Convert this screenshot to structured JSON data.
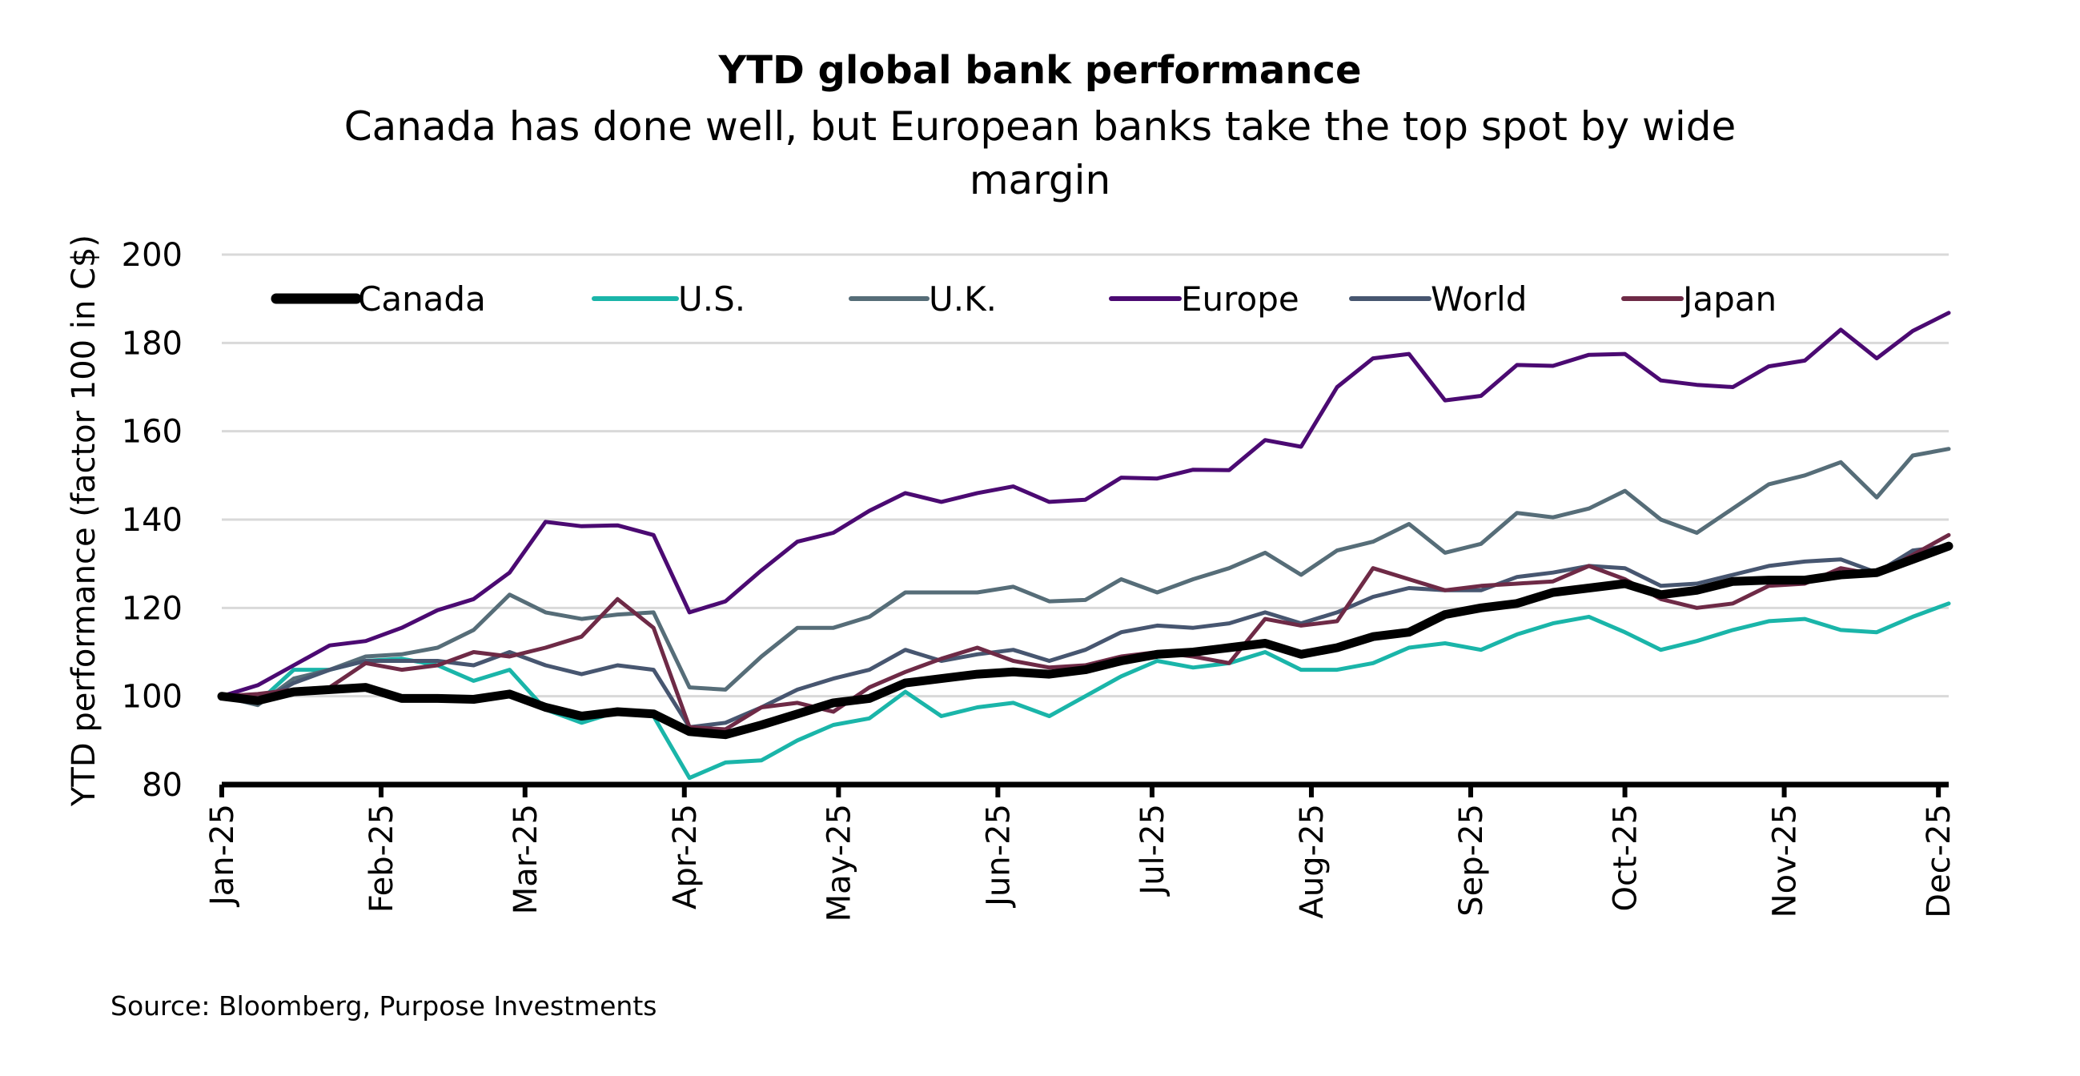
{
  "chart_data": {
    "type": "line",
    "title": "YTD global bank performance",
    "subtitle_lines": [
      "Canada has done well, but European banks take the top spot by wide",
      "margin"
    ],
    "ylabel": "YTD performance (factor 100 in C$)",
    "xlabel": "",
    "ylim": [
      80,
      200
    ],
    "yticks": [
      80,
      100,
      120,
      140,
      160,
      180,
      200
    ],
    "grid": "horizontal",
    "legend_placement": "top-left",
    "x_start": "2025-01-01",
    "x_step_days": 7,
    "xtick_labels": [
      "Jan-25",
      "Feb-25",
      "Mar-25",
      "Apr-25",
      "May-25",
      "Jun-25",
      "Jul-25",
      "Aug-25",
      "Sep-25",
      "Oct-25",
      "Nov-25",
      "Dec-25"
    ],
    "xtick_dates": [
      "2025-01-01",
      "2025-02-01",
      "2025-03-01",
      "2025-04-01",
      "2025-05-01",
      "2025-06-01",
      "2025-07-01",
      "2025-08-01",
      "2025-09-01",
      "2025-10-01",
      "2025-11-01",
      "2025-12-01"
    ],
    "series": [
      {
        "name": "Canada",
        "color": "#000000",
        "values": [
          100,
          99,
          101,
          101.5,
          102,
          99.5,
          99.5,
          99.3,
          100.5,
          97.5,
          95.5,
          96.5,
          96,
          92,
          91.3,
          93.5,
          96,
          98.5,
          99.5,
          103,
          104,
          105,
          105.5,
          105,
          106,
          108,
          109.5,
          110,
          111,
          112,
          109.5,
          111,
          113.5,
          114.5,
          118.5,
          120,
          121,
          123.5,
          124.5,
          125.5,
          123,
          124,
          126,
          126.3,
          126.3,
          127.5,
          128,
          131,
          134
        ]
      },
      {
        "name": "U.S.",
        "color": "#1ab5a9",
        "values": [
          100,
          98.5,
          106,
          106,
          108,
          108.5,
          107,
          103.5,
          106,
          97,
          94,
          96.5,
          95.5,
          81.5,
          85,
          85.5,
          90,
          93.5,
          95,
          101,
          95.5,
          97.5,
          98.5,
          95.5,
          100,
          104.5,
          108,
          106.5,
          107.5,
          110,
          106,
          106,
          107.5,
          111,
          112,
          110.5,
          114,
          116.5,
          118,
          114.5,
          110.5,
          112.5,
          115,
          117,
          117.5,
          115,
          114.5,
          118,
          121
        ]
      },
      {
        "name": "U.K.",
        "color": "#566d78",
        "values": [
          100,
          98,
          104,
          106,
          109,
          109.5,
          111,
          115,
          123,
          119,
          117.5,
          118.5,
          119,
          102,
          101.5,
          109,
          115.5,
          115.5,
          118,
          123.5,
          123.5,
          123.5,
          124.8,
          121.5,
          121.8,
          126.5,
          123.5,
          126.5,
          129,
          132.5,
          127.5,
          133,
          135,
          139,
          132.5,
          134.5,
          141.5,
          140.5,
          142.5,
          146.5,
          140,
          137,
          142.5,
          148,
          150,
          153,
          145,
          154.5,
          156
        ]
      },
      {
        "name": "Europe",
        "color": "#4b0a72",
        "values": [
          100,
          102.5,
          107,
          111.5,
          112.5,
          115.5,
          119.5,
          122,
          128,
          139.5,
          138.5,
          138.7,
          136.5,
          119,
          121.5,
          128.5,
          135,
          137,
          142,
          146,
          144,
          146,
          147.5,
          144,
          144.5,
          149.5,
          149.3,
          151.3,
          151.2,
          158,
          156.5,
          170,
          176.5,
          177.5,
          167,
          168,
          175,
          174.8,
          177.3,
          177.5,
          171.5,
          170.5,
          170,
          174.7,
          176,
          183,
          176.5,
          182.7,
          186.8
        ]
      },
      {
        "name": "World",
        "color": "#475670",
        "values": [
          100,
          98.5,
          103,
          106,
          108,
          108,
          108,
          107,
          110,
          107,
          105,
          107,
          106,
          93,
          94,
          97.5,
          101.5,
          104,
          106,
          110.5,
          108,
          109.5,
          110.5,
          108,
          110.5,
          114.5,
          116,
          115.5,
          116.5,
          119,
          116.5,
          119,
          122.5,
          124.5,
          124,
          124,
          127,
          128,
          129.5,
          129,
          125,
          125.5,
          127.5,
          129.5,
          130.5,
          131,
          128,
          133,
          134
        ]
      },
      {
        "name": "Japan",
        "color": "#6e2a46",
        "values": [
          100,
          100.5,
          101.5,
          102,
          107.5,
          106,
          107,
          110,
          109,
          111,
          113.5,
          122,
          115.5,
          93,
          92.5,
          97.5,
          98.5,
          96.5,
          102,
          105.5,
          108.5,
          111,
          108,
          106.5,
          107,
          109,
          110,
          109,
          107.5,
          117.5,
          116,
          117,
          129,
          126.5,
          124,
          125,
          125.5,
          126,
          129.5,
          126.5,
          122,
          120,
          121,
          125,
          125.5,
          129,
          127.5,
          132,
          136.5
        ]
      }
    ],
    "source": "Source: Bloomberg, Purpose Investments"
  }
}
